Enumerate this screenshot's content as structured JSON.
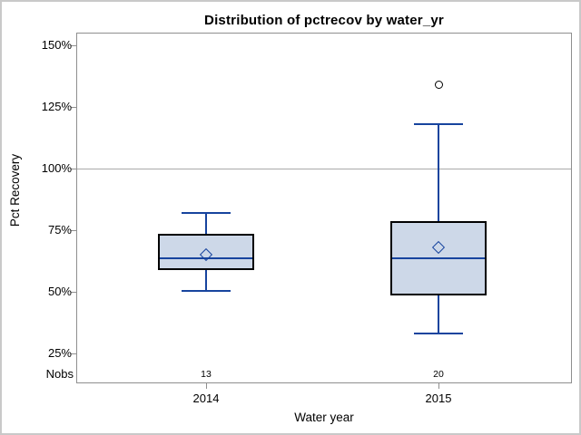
{
  "title": "Distribution of pctrecov by water_yr",
  "axes": {
    "y_label": "Pct Recovery",
    "x_label": "Water year",
    "nobs_label": "Nobs"
  },
  "colors": {
    "box_fill": "#cdd8e8",
    "box_border": "#000000",
    "whisker_blue": "#17449e",
    "median_blue": "#17449e",
    "mean_marker_blue": "#17449e",
    "outlier_black": "#000000",
    "axis_gray": "#8f8f8f",
    "reference_line_gray": "#a9a9a9"
  },
  "chart_data": {
    "type": "boxplot",
    "title": "Distribution of pctrecov by water_yr",
    "xlabel": "Water year",
    "ylabel": "Pct Recovery",
    "ylim": [
      25,
      150
    ],
    "grid": false,
    "reference_line": 100,
    "yticks": [
      {
        "label": "150%",
        "value": 150
      },
      {
        "label": "125%",
        "value": 125
      },
      {
        "label": "100%",
        "value": 100
      },
      {
        "label": "75%",
        "value": 75
      },
      {
        "label": "50%",
        "value": 50
      },
      {
        "label": "25%",
        "value": 25
      }
    ],
    "categories": [
      "2014",
      "2015"
    ],
    "nobs_row_label": "Nobs",
    "series": [
      {
        "category": "2014",
        "nobs": "13",
        "whisker_low": 50.5,
        "q1": 59,
        "median": 63.5,
        "q3": 73.5,
        "whisker_high": 82,
        "mean": 65,
        "outliers": []
      },
      {
        "category": "2015",
        "nobs": "20",
        "whisker_low": 33,
        "q1": 48.5,
        "median": 63.5,
        "q3": 78.5,
        "whisker_high": 118,
        "mean": 68,
        "outliers": [
          134
        ]
      }
    ]
  }
}
